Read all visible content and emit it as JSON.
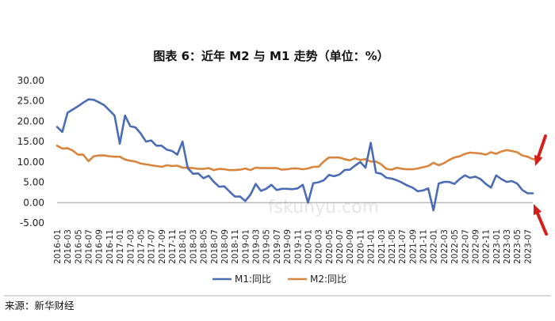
{
  "chart_data": {
    "type": "line",
    "title": "图表 6：近年 M2 与 M1 走势（单位：%）",
    "xlabel": "",
    "ylabel": "",
    "ylim": [
      -5,
      30
    ],
    "y_ticks": [
      "30.00",
      "25.00",
      "20.00",
      "15.00",
      "10.00",
      "5.00",
      "0.00",
      "-5.00"
    ],
    "x_tick_labels": [
      "2016-01",
      "2016-03",
      "2016-05",
      "2016-07",
      "2016-09",
      "2016-11",
      "2017-01",
      "2017-03",
      "2017-05",
      "2017-07",
      "2017-09",
      "2017-11",
      "2018-01",
      "2018-03",
      "2018-05",
      "2018-07",
      "2018-09",
      "2018-11",
      "2019-01",
      "2019-03",
      "2019-05",
      "2019-07",
      "2019-09",
      "2019-11",
      "2020-01",
      "2020-03",
      "2020-05",
      "2020-07",
      "2020-09",
      "2020-11",
      "2021-01",
      "2021-03",
      "2021-05",
      "2021-07",
      "2021-09",
      "2021-11",
      "2022-01",
      "2022-03",
      "2022-05",
      "2022-07",
      "2022-09",
      "2022-11",
      "2023-01",
      "2023-03",
      "2023-05",
      "2023-07"
    ],
    "grid": false,
    "legend_position": "bottom",
    "series": [
      {
        "name": "M1:同比",
        "color": "#4A6BB5",
        "values": [
          18.6,
          17.4,
          22.1,
          22.9,
          23.7,
          24.6,
          25.4,
          25.3,
          24.7,
          24.0,
          22.7,
          21.4,
          14.5,
          21.4,
          18.8,
          18.5,
          17.0,
          15.0,
          15.3,
          14.0,
          14.0,
          13.0,
          12.7,
          11.8,
          15.0,
          8.5,
          7.1,
          7.2,
          6.0,
          6.6,
          5.1,
          3.9,
          4.0,
          2.7,
          1.5,
          1.5,
          0.4,
          2.0,
          4.6,
          2.9,
          3.4,
          4.4,
          3.1,
          3.4,
          3.4,
          3.3,
          3.5,
          4.4,
          0.0,
          4.8,
          5.0,
          5.5,
          6.8,
          6.5,
          6.9,
          8.0,
          8.1,
          9.1,
          10.0,
          8.6,
          14.7,
          7.4,
          7.1,
          6.1,
          5.9,
          5.5,
          4.9,
          4.2,
          3.7,
          2.8,
          3.0,
          3.5,
          -1.9,
          4.7,
          5.1,
          5.1,
          4.6,
          5.8,
          6.7,
          6.1,
          6.4,
          5.8,
          4.6,
          3.7,
          6.7,
          5.8,
          5.1,
          5.3,
          4.7,
          3.1,
          2.3,
          2.3
        ],
        "end_annotation": "red-arrow"
      },
      {
        "name": "M2:同比",
        "color": "#D9843D",
        "values": [
          14.0,
          13.3,
          13.4,
          12.8,
          11.8,
          11.8,
          10.2,
          11.4,
          11.6,
          11.6,
          11.4,
          11.3,
          11.3,
          10.6,
          10.3,
          10.1,
          9.6,
          9.4,
          9.2,
          9.0,
          8.8,
          9.2,
          9.0,
          9.1,
          8.6,
          8.6,
          8.5,
          8.3,
          8.3,
          8.5,
          8.0,
          8.3,
          8.2,
          8.0,
          8.0,
          8.1,
          8.4,
          8.0,
          8.6,
          8.5,
          8.5,
          8.5,
          8.5,
          8.1,
          8.2,
          8.4,
          8.4,
          8.2,
          8.4,
          8.8,
          8.8,
          10.1,
          11.1,
          11.1,
          11.1,
          10.7,
          10.4,
          10.9,
          10.5,
          10.7,
          10.1,
          10.1,
          9.4,
          8.3,
          8.1,
          8.6,
          8.3,
          8.2,
          8.2,
          8.4,
          8.7,
          9.0,
          9.8,
          9.2,
          9.7,
          10.5,
          11.1,
          11.4,
          12.0,
          12.3,
          12.2,
          12.1,
          11.8,
          12.4,
          12.0,
          12.6,
          12.9,
          12.7,
          12.4,
          11.6,
          11.3,
          10.7,
          10.7
        ],
        "end_annotation": "red-arrow"
      }
    ],
    "watermark": "fskunyu.com",
    "source": "来源：新华财经"
  }
}
